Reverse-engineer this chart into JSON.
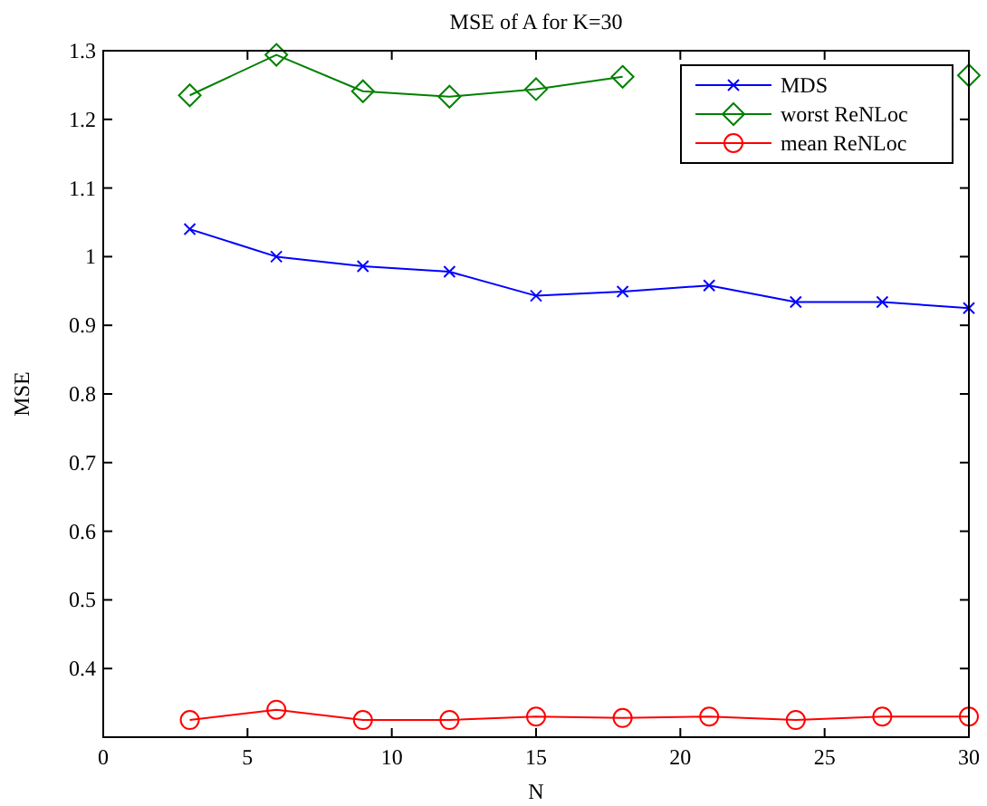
{
  "chart_data": {
    "type": "line",
    "title": "MSE of A for K=30",
    "xlabel": "N",
    "ylabel": "MSE",
    "x": [
      3,
      6,
      9,
      12,
      15,
      18,
      21,
      24,
      27,
      30
    ],
    "series": [
      {
        "name": "MDS",
        "color": "#0000ff",
        "marker": "cross",
        "values": [
          1.04,
          1.0,
          0.986,
          0.978,
          0.943,
          0.949,
          0.958,
          0.934,
          0.934,
          0.925
        ]
      },
      {
        "name": "worst ReNLoc",
        "color": "#008000",
        "marker": "diamond",
        "values": [
          1.235,
          1.294,
          1.241,
          1.233,
          1.244,
          1.262,
          null,
          null,
          null,
          1.264
        ]
      },
      {
        "name": "mean ReNLoc",
        "color": "#ff0000",
        "marker": "circle",
        "values": [
          0.325,
          0.34,
          0.325,
          0.325,
          0.33,
          0.328,
          0.33,
          0.325,
          0.33,
          0.33
        ]
      }
    ],
    "xlim": [
      0,
      30
    ],
    "xticks": [
      0,
      5,
      10,
      15,
      20,
      25,
      30
    ],
    "ylim": [
      0.3,
      1.3
    ],
    "yticks": [
      0.4,
      0.5,
      0.6,
      0.7,
      0.8,
      0.9,
      1,
      1.1,
      1.2,
      1.3
    ],
    "grid": false,
    "legend": "top right",
    "line_style": "solid"
  }
}
